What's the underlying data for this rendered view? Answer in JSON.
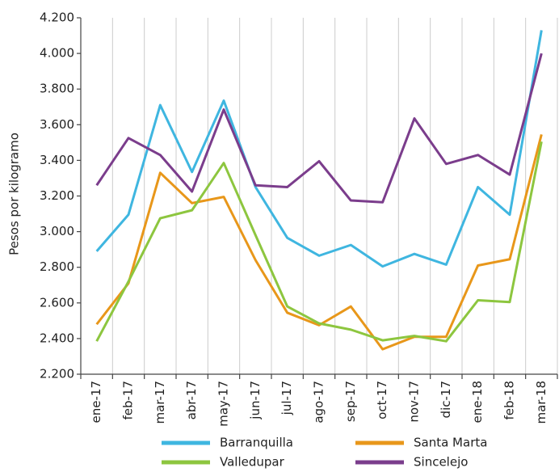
{
  "chart_data": {
    "type": "line",
    "ylabel": "Pesos por kilogramo",
    "categories": [
      "ene-17",
      "feb-17",
      "mar-17",
      "abr-17",
      "may-17",
      "jun-17",
      "jul-17",
      "ago-17",
      "sep-17",
      "oct-17",
      "nov-17",
      "dic-17",
      "ene-18",
      "feb-18",
      "mar-18"
    ],
    "series": [
      {
        "name": "Barranquilla",
        "color": "#3fb6e0",
        "values": [
          2890,
          3095,
          3710,
          3335,
          3735,
          3250,
          2965,
          2865,
          2925,
          2805,
          2875,
          2815,
          3250,
          3095,
          4130
        ]
      },
      {
        "name": "Santa Marta",
        "color": "#e8971a",
        "values": [
          2480,
          2710,
          3330,
          3160,
          3195,
          2840,
          2545,
          2475,
          2580,
          2340,
          2410,
          2410,
          2810,
          2845,
          3545
        ]
      },
      {
        "name": "Valledupar",
        "color": "#8dc63f",
        "values": [
          2385,
          2720,
          3075,
          3120,
          3385,
          2980,
          2580,
          2485,
          2450,
          2390,
          2415,
          2385,
          2615,
          2605,
          3505
        ]
      },
      {
        "name": "Sincelejo",
        "color": "#7b3d8c",
        "values": [
          3260,
          3525,
          3430,
          3225,
          3685,
          3260,
          3250,
          3395,
          3175,
          3165,
          3635,
          3380,
          3430,
          3320,
          4000
        ]
      }
    ],
    "ylim": [
      2200,
      4200
    ],
    "yticks": [
      {
        "value": 2200,
        "label": "2.200"
      },
      {
        "value": 2400,
        "label": "2.400"
      },
      {
        "value": 2600,
        "label": "2.600"
      },
      {
        "value": 2800,
        "label": "2.800"
      },
      {
        "value": 3000,
        "label": "3.000"
      },
      {
        "value": 3200,
        "label": "3.200"
      },
      {
        "value": 3400,
        "label": "3.400"
      },
      {
        "value": 3600,
        "label": "3.600"
      },
      {
        "value": 3800,
        "label": "3.800"
      },
      {
        "value": 4000,
        "label": "4.000"
      },
      {
        "value": 4200,
        "label": "4.200"
      }
    ]
  }
}
